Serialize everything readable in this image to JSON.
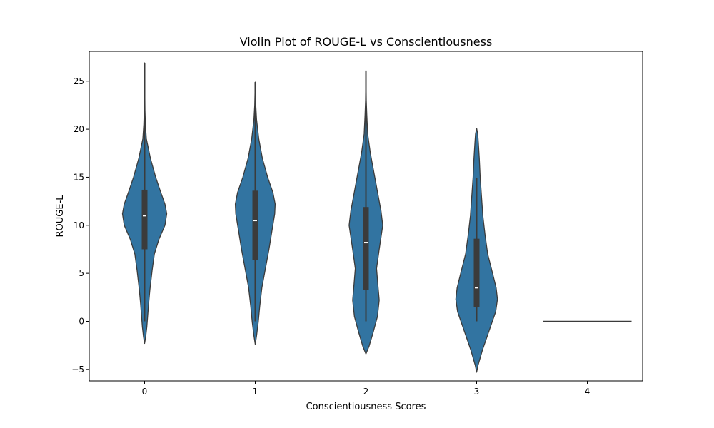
{
  "chart_data": {
    "type": "violin",
    "title": "Violin Plot of ROUGE-L vs Conscientiousness",
    "xlabel": "Conscientiousness Scores",
    "ylabel": "ROUGE-L",
    "categories": [
      "0",
      "1",
      "2",
      "3",
      "4"
    ],
    "ylim": [
      -6.2,
      28.1
    ],
    "yticks": [
      -5,
      0,
      5,
      10,
      15,
      20,
      25
    ],
    "ytick_labels": [
      "−5",
      "0",
      "5",
      "10",
      "15",
      "20",
      "25"
    ],
    "grid": false,
    "color": "#3274a1",
    "edge_color": "#3b3b3b",
    "violins": [
      {
        "category": "0",
        "min": 0,
        "q1": 7.5,
        "median": 11.0,
        "q3": 13.7,
        "max": 26.9,
        "cut_low": -2.3,
        "cut_high": 26.9,
        "density": [
          [
            -2.3,
            0
          ],
          [
            -1.6,
            0.025
          ],
          [
            -0.6,
            0.05
          ],
          [
            0.6,
            0.07
          ],
          [
            1.8,
            0.09
          ],
          [
            3.3,
            0.12
          ],
          [
            5.3,
            0.17
          ],
          [
            7.0,
            0.22
          ],
          [
            8.5,
            0.32
          ],
          [
            10.0,
            0.46
          ],
          [
            11.2,
            0.5
          ],
          [
            12.2,
            0.46
          ],
          [
            13.5,
            0.36
          ],
          [
            15.0,
            0.25
          ],
          [
            17.0,
            0.13
          ],
          [
            19.0,
            0.04
          ],
          [
            20.5,
            0.018
          ],
          [
            22.0,
            0.008
          ],
          [
            24.0,
            0.004
          ],
          [
            26.9,
            0
          ]
        ]
      },
      {
        "category": "1",
        "min": 0,
        "q1": 6.4,
        "median": 10.5,
        "q3": 13.6,
        "max": 24.9,
        "cut_low": -2.4,
        "cut_high": 24.9,
        "density": [
          [
            -2.4,
            0
          ],
          [
            -1.5,
            0.03
          ],
          [
            0,
            0.07
          ],
          [
            1.5,
            0.1
          ],
          [
            3.5,
            0.15
          ],
          [
            5.5,
            0.23
          ],
          [
            7.5,
            0.31
          ],
          [
            9.5,
            0.38
          ],
          [
            11.2,
            0.44
          ],
          [
            12.2,
            0.45
          ],
          [
            13.4,
            0.4
          ],
          [
            15.0,
            0.28
          ],
          [
            17.0,
            0.16
          ],
          [
            19.0,
            0.08
          ],
          [
            21.0,
            0.03
          ],
          [
            22.5,
            0.012
          ],
          [
            24.9,
            0
          ]
        ]
      },
      {
        "category": "2",
        "min": 0,
        "q1": 3.3,
        "median": 8.2,
        "q3": 11.9,
        "max": 26.1,
        "cut_low": -3.4,
        "cut_high": 26.1,
        "density": [
          [
            -3.4,
            0
          ],
          [
            -2.6,
            0.07
          ],
          [
            -1.2,
            0.16
          ],
          [
            0.5,
            0.26
          ],
          [
            2.2,
            0.3
          ],
          [
            3.8,
            0.27
          ],
          [
            5.5,
            0.24
          ],
          [
            7.5,
            0.3
          ],
          [
            10.0,
            0.38
          ],
          [
            11.5,
            0.34
          ],
          [
            13.5,
            0.26
          ],
          [
            15.5,
            0.18
          ],
          [
            17.5,
            0.1
          ],
          [
            19.5,
            0.04
          ],
          [
            21.5,
            0.02
          ],
          [
            23.0,
            0.008
          ],
          [
            26.1,
            0
          ]
        ]
      },
      {
        "category": "3",
        "min": 0,
        "q1": 1.5,
        "median": 3.5,
        "q3": 8.6,
        "max": 14.9,
        "cut_low": -5.3,
        "cut_high": 20.1,
        "density": [
          [
            -5.3,
            0
          ],
          [
            -4.6,
            0.03
          ],
          [
            -3.0,
            0.13
          ],
          [
            -1.0,
            0.28
          ],
          [
            1.0,
            0.43
          ],
          [
            2.3,
            0.47
          ],
          [
            3.5,
            0.44
          ],
          [
            5.0,
            0.36
          ],
          [
            7.0,
            0.25
          ],
          [
            9.0,
            0.19
          ],
          [
            11.0,
            0.14
          ],
          [
            13.0,
            0.11
          ],
          [
            15.0,
            0.08
          ],
          [
            17.0,
            0.06
          ],
          [
            18.5,
            0.04
          ],
          [
            19.5,
            0.025
          ],
          [
            20.1,
            0
          ]
        ]
      },
      {
        "category": "4",
        "constant_value": 0
      }
    ]
  }
}
